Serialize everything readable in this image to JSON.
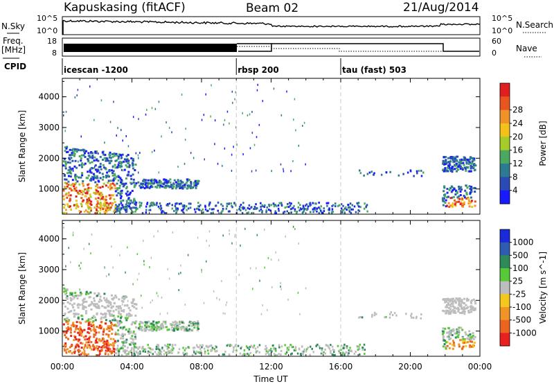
{
  "header": {
    "station": "Kapuskasing (fitACF)",
    "beam": "Beam 02",
    "date": "21/Aug/2014"
  },
  "side_labels": {
    "nsky": "N.Sky",
    "nsearch": "N.Search",
    "freq_line1": "Freq.",
    "freq_line2": "[MHz]",
    "nave": "Nave",
    "cpid": "CPID"
  },
  "noise_panel": {
    "left_ticks": [
      "10^5",
      "10^0"
    ],
    "right_ticks": [
      "10^5",
      "10^0"
    ]
  },
  "freq_panel": {
    "left_ticks": [
      "18",
      "8"
    ],
    "right_ticks": [
      "60",
      "0"
    ]
  },
  "cpid_segments": [
    {
      "label": "icescan -1200",
      "start_hour": 0
    },
    {
      "label": "rbsp 200",
      "start_hour": 10
    },
    {
      "label": "tau (fast) 503",
      "start_hour": 16
    }
  ],
  "chart_data": [
    {
      "type": "heatmap",
      "name": "power-panel",
      "ylabel": "Slant Range [km]",
      "xlim_hours": [
        0,
        24
      ],
      "ylim": [
        180,
        4600
      ],
      "y_ticks": [
        "1000",
        "2000",
        "3000",
        "4000"
      ],
      "x_ticks": [
        "00:00",
        "04:00",
        "08:00",
        "12:00",
        "16:00",
        "20:00",
        "00:00"
      ],
      "colorbar": {
        "label": "Power [dB]",
        "ticks": [
          "4",
          "8",
          "12",
          "16",
          "20",
          "24",
          "28"
        ],
        "colors": [
          "#1a1aff",
          "#2a4bb5",
          "#2e7a90",
          "#4aa860",
          "#a6cc2a",
          "#f2c21a",
          "#f0922a",
          "#e85520",
          "#e02020"
        ]
      }
    },
    {
      "type": "heatmap",
      "name": "velocity-panel",
      "ylabel": "Slant Range [km]",
      "xlabel": "Time UT",
      "xlim_hours": [
        0,
        24
      ],
      "ylim": [
        180,
        4600
      ],
      "y_ticks": [
        "1000",
        "2000",
        "3000",
        "4000"
      ],
      "x_ticks": [
        "00:00",
        "04:00",
        "08:00",
        "12:00",
        "16:00",
        "20:00",
        "00:00"
      ],
      "colorbar": {
        "label": "Velocity [m s^-1]",
        "ticks": [
          "1000",
          "500",
          "100",
          "25",
          "-25",
          "-100",
          "-500",
          "-1000"
        ],
        "colors": [
          "#1a2ad8",
          "#2e5cb0",
          "#2f8a5a",
          "#57c837",
          "#bdbdbd",
          "#f5c81e",
          "#f09428",
          "#ec6420",
          "#e82020"
        ]
      }
    }
  ]
}
